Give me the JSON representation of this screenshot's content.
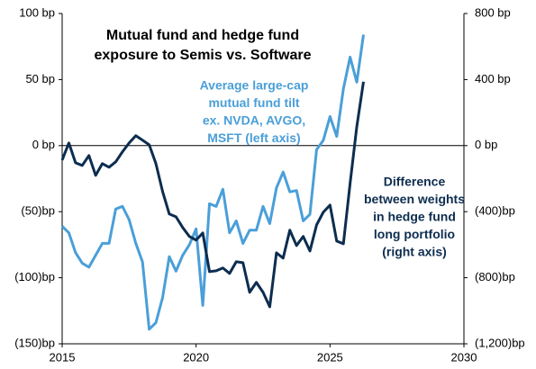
{
  "chart_data": {
    "type": "line",
    "title": [
      "Mutual fund and hedge fund",
      "exposure to Semis vs. Software"
    ],
    "annotations": [
      {
        "lines": [
          "Average large-cap",
          "mutual fund tilt",
          "ex. NVDA, AVGO,",
          "MSFT (left axis)"
        ],
        "color": "#4a9fd8"
      },
      {
        "lines": [
          "Difference",
          "between weights",
          "in hedge fund",
          "long portfolio",
          "(right axis)"
        ],
        "color": "#0d2d4f"
      }
    ],
    "x": [
      2015,
      2015.25,
      2015.5,
      2015.75,
      2016,
      2016.25,
      2016.5,
      2016.75,
      2017,
      2017.25,
      2017.5,
      2017.75,
      2018,
      2018.25,
      2018.5,
      2018.75,
      2019,
      2019.25,
      2019.5,
      2019.75,
      2020,
      2020.25,
      2020.5,
      2020.75,
      2021,
      2021.25,
      2021.5,
      2021.75,
      2022,
      2022.25,
      2022.5,
      2022.75,
      2023,
      2023.25,
      2023.5,
      2023.75,
      2024,
      2024.25,
      2024.5,
      2024.75,
      2025,
      2025.25,
      2025.5,
      2025.75,
      2026,
      2026.25
    ],
    "series": [
      {
        "color": "#4a9fd8",
        "axis": "y",
        "values": [
          -61,
          -66,
          -81,
          -89,
          -92,
          -83,
          -74,
          -74,
          -48,
          -46,
          -56,
          -74,
          -88,
          -139,
          -134,
          -115,
          -84,
          -95,
          -83,
          -75,
          -63,
          -121,
          -44,
          -46,
          -33,
          -66,
          -57,
          -74,
          -64,
          -64,
          -46,
          -59,
          -32,
          -20,
          -35,
          -34,
          -57,
          -52,
          -3,
          4,
          22,
          7,
          43,
          67,
          48,
          84
        ]
      },
      {
        "color": "#0d2d4f",
        "axis": "y2",
        "values": [
          -87,
          16,
          -104,
          -120,
          -60,
          -180,
          -109,
          -131,
          -98,
          -38,
          16,
          60,
          33,
          5,
          -109,
          -278,
          -414,
          -431,
          -496,
          -550,
          -572,
          -529,
          -763,
          -758,
          -741,
          -774,
          -703,
          -709,
          -888,
          -828,
          -888,
          -976,
          -649,
          -681,
          -512,
          -605,
          -550,
          -638,
          -480,
          -403,
          -360,
          -578,
          -594,
          -229,
          115,
          387
        ]
      }
    ],
    "xlim": [
      2015,
      2030
    ],
    "xticks": [
      2015,
      2020,
      2025,
      2030
    ],
    "ylim": [
      -150,
      100
    ],
    "yticks": [
      {
        "value": 100,
        "label": "100 bp"
      },
      {
        "value": 50,
        "label": "50 bp"
      },
      {
        "value": 0,
        "label": "0 bp"
      },
      {
        "value": -50,
        "label": "(50)bp"
      },
      {
        "value": -100,
        "label": "(100)bp"
      },
      {
        "value": -150,
        "label": "(150)bp"
      }
    ],
    "y2lim": [
      -1200,
      800
    ],
    "y2ticks": [
      {
        "value": 800,
        "label": "800 bp"
      },
      {
        "value": 400,
        "label": "400 bp"
      },
      {
        "value": 0,
        "label": "0 bp"
      },
      {
        "value": -400,
        "label": "(400)bp"
      },
      {
        "value": -800,
        "label": "(800)bp"
      },
      {
        "value": -1200,
        "label": "(1,200)bp"
      }
    ]
  }
}
